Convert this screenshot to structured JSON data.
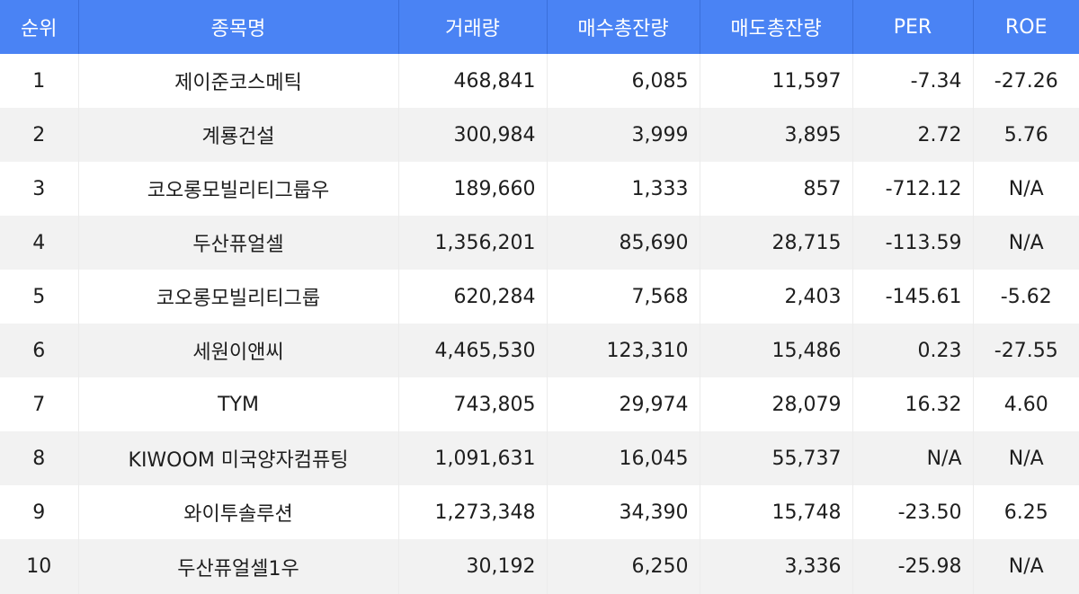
{
  "table": {
    "headers": {
      "rank": "순위",
      "name": "종목명",
      "volume": "거래량",
      "buy_total": "매수총잔량",
      "sell_total": "매도총잔량",
      "per": "PER",
      "roe": "ROE"
    },
    "rows": [
      {
        "rank": "1",
        "name": "제이준코스메틱",
        "volume": "468,841",
        "buy_total": "6,085",
        "sell_total": "11,597",
        "per": "-7.34",
        "roe": "-27.26"
      },
      {
        "rank": "2",
        "name": "계룡건설",
        "volume": "300,984",
        "buy_total": "3,999",
        "sell_total": "3,895",
        "per": "2.72",
        "roe": "5.76"
      },
      {
        "rank": "3",
        "name": "코오롱모빌리티그룹우",
        "volume": "189,660",
        "buy_total": "1,333",
        "sell_total": "857",
        "per": "-712.12",
        "roe": "N/A"
      },
      {
        "rank": "4",
        "name": "두산퓨얼셀",
        "volume": "1,356,201",
        "buy_total": "85,690",
        "sell_total": "28,715",
        "per": "-113.59",
        "roe": "N/A"
      },
      {
        "rank": "5",
        "name": "코오롱모빌리티그룹",
        "volume": "620,284",
        "buy_total": "7,568",
        "sell_total": "2,403",
        "per": "-145.61",
        "roe": "-5.62"
      },
      {
        "rank": "6",
        "name": "세원이앤씨",
        "volume": "4,465,530",
        "buy_total": "123,310",
        "sell_total": "15,486",
        "per": "0.23",
        "roe": "-27.55"
      },
      {
        "rank": "7",
        "name": "TYM",
        "volume": "743,805",
        "buy_total": "29,974",
        "sell_total": "28,079",
        "per": "16.32",
        "roe": "4.60"
      },
      {
        "rank": "8",
        "name": "KIWOOM 미국양자컴퓨팅",
        "volume": "1,091,631",
        "buy_total": "16,045",
        "sell_total": "55,737",
        "per": "N/A",
        "roe": "N/A"
      },
      {
        "rank": "9",
        "name": "와이투솔루션",
        "volume": "1,273,348",
        "buy_total": "34,390",
        "sell_total": "15,748",
        "per": "-23.50",
        "roe": "6.25"
      },
      {
        "rank": "10",
        "name": "두산퓨얼셀1우",
        "volume": "30,192",
        "buy_total": "6,250",
        "sell_total": "3,336",
        "per": "-25.98",
        "roe": "N/A"
      }
    ]
  },
  "colors": {
    "header_bg": "#4a83f4",
    "header_text": "#ffffff",
    "stripe_bg": "#f2f2f2"
  }
}
